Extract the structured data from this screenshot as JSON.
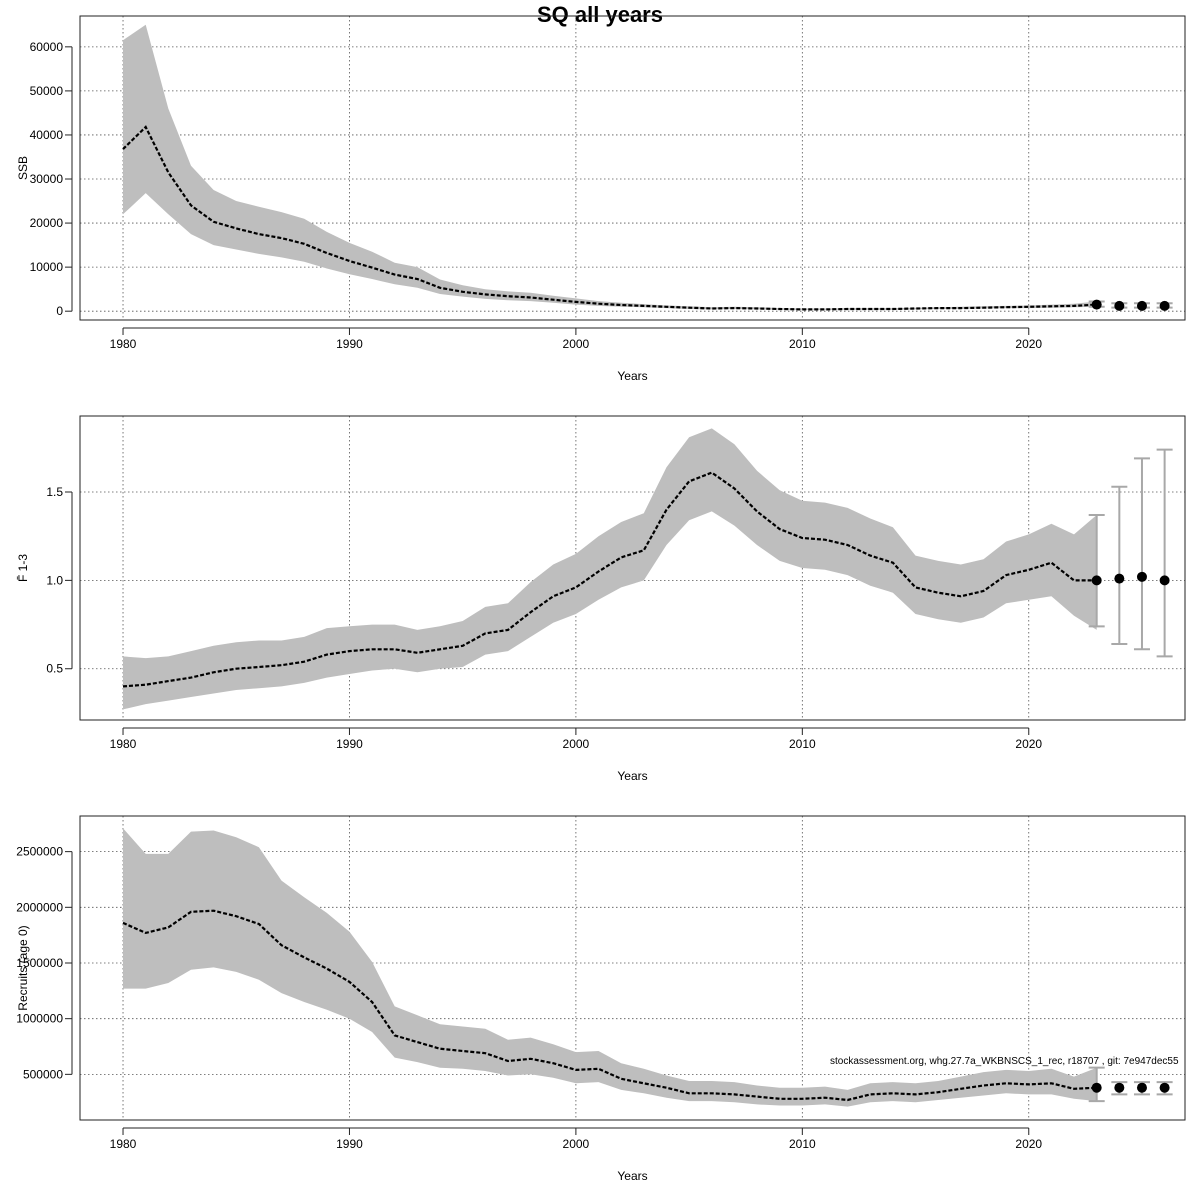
{
  "title": "SQ all years",
  "footnote": "stockassessment.org, whg.27.7a_WKBNSCS_1_rec, r18707 , git: 7e947dec55",
  "chart_data": [
    {
      "type": "line",
      "title": "",
      "ylabel": "SSB",
      "xlabel": "Years",
      "xlim": [
        1978.1,
        2026.9
      ],
      "ylim": [
        -2000,
        67000
      ],
      "xticks": [
        1980,
        1990,
        2000,
        2010,
        2020
      ],
      "yticks": [
        0,
        10000,
        20000,
        30000,
        40000,
        50000,
        60000
      ],
      "grid": true,
      "x": [
        1980,
        1981,
        1982,
        1983,
        1984,
        1985,
        1986,
        1987,
        1988,
        1989,
        1990,
        1991,
        1992,
        1993,
        1994,
        1995,
        1996,
        1997,
        1998,
        1999,
        2000,
        2001,
        2002,
        2003,
        2004,
        2005,
        2006,
        2007,
        2008,
        2009,
        2010,
        2011,
        2012,
        2013,
        2014,
        2015,
        2016,
        2017,
        2018,
        2019,
        2020,
        2021,
        2022,
        2023
      ],
      "estimate": [
        36800,
        41800,
        31500,
        24000,
        20300,
        18800,
        17500,
        16600,
        15300,
        13200,
        11400,
        9900,
        8300,
        7300,
        5300,
        4400,
        3800,
        3400,
        3100,
        2600,
        2100,
        1700,
        1400,
        1200,
        1000,
        800,
        600,
        700,
        600,
        500,
        400,
        400,
        500,
        500,
        500,
        600,
        700,
        700,
        800,
        900,
        1000,
        1100,
        1200,
        1500
      ],
      "lower": [
        22000,
        26800,
        22000,
        17500,
        15000,
        14000,
        13000,
        12200,
        11200,
        9700,
        8400,
        7300,
        6100,
        5300,
        3900,
        3300,
        2800,
        2500,
        2300,
        1900,
        1500,
        1200,
        1000,
        900,
        700,
        500,
        400,
        500,
        400,
        300,
        300,
        300,
        300,
        300,
        300,
        400,
        500,
        500,
        600,
        700,
        700,
        800,
        900,
        1000
      ],
      "upper": [
        61500,
        65000,
        46000,
        33000,
        27500,
        25000,
        23700,
        22500,
        21000,
        18000,
        15500,
        13500,
        11000,
        10000,
        7200,
        5900,
        5000,
        4500,
        4200,
        3500,
        2900,
        2300,
        1900,
        1600,
        1300,
        1100,
        900,
        1000,
        900,
        700,
        600,
        600,
        700,
        700,
        700,
        800,
        900,
        1000,
        1100,
        1200,
        1300,
        1500,
        1700,
        2200
      ],
      "forecast": {
        "x": [
          2023,
          2024,
          2025,
          2026
        ],
        "values": [
          1500,
          1200,
          1200,
          1200
        ],
        "lower": [
          1000,
          800,
          800,
          800
        ],
        "upper": [
          2200,
          1800,
          1800,
          1800
        ]
      }
    },
    {
      "type": "line",
      "title": "",
      "ylabel": "F̄ 1-3",
      "xlabel": "Years",
      "xlim": [
        1978.1,
        2026.9
      ],
      "ylim": [
        0.21,
        1.93
      ],
      "xticks": [
        1980,
        1990,
        2000,
        2010,
        2020
      ],
      "yticks": [
        0.5,
        1.0,
        1.5
      ],
      "ytick_labels": [
        "0.5",
        "1.0",
        "1.5"
      ],
      "grid": true,
      "x": [
        1980,
        1981,
        1982,
        1983,
        1984,
        1985,
        1986,
        1987,
        1988,
        1989,
        1990,
        1991,
        1992,
        1993,
        1994,
        1995,
        1996,
        1997,
        1998,
        1999,
        2000,
        2001,
        2002,
        2003,
        2004,
        2005,
        2006,
        2007,
        2008,
        2009,
        2010,
        2011,
        2012,
        2013,
        2014,
        2015,
        2016,
        2017,
        2018,
        2019,
        2020,
        2021,
        2022,
        2023
      ],
      "estimate": [
        0.4,
        0.41,
        0.43,
        0.45,
        0.48,
        0.5,
        0.51,
        0.52,
        0.54,
        0.58,
        0.6,
        0.61,
        0.61,
        0.59,
        0.61,
        0.63,
        0.7,
        0.72,
        0.82,
        0.91,
        0.96,
        1.05,
        1.13,
        1.17,
        1.4,
        1.56,
        1.61,
        1.52,
        1.39,
        1.29,
        1.24,
        1.23,
        1.2,
        1.14,
        1.1,
        0.96,
        0.93,
        0.91,
        0.94,
        1.03,
        1.06,
        1.1,
        1.0,
        1.0
      ],
      "lower": [
        0.27,
        0.3,
        0.32,
        0.34,
        0.36,
        0.38,
        0.39,
        0.4,
        0.42,
        0.45,
        0.47,
        0.49,
        0.5,
        0.48,
        0.5,
        0.51,
        0.58,
        0.6,
        0.68,
        0.76,
        0.81,
        0.89,
        0.96,
        1.0,
        1.2,
        1.34,
        1.39,
        1.31,
        1.2,
        1.11,
        1.07,
        1.06,
        1.03,
        0.97,
        0.93,
        0.81,
        0.78,
        0.76,
        0.79,
        0.87,
        0.89,
        0.91,
        0.8,
        0.72
      ],
      "upper": [
        0.57,
        0.56,
        0.57,
        0.6,
        0.63,
        0.65,
        0.66,
        0.66,
        0.68,
        0.73,
        0.74,
        0.75,
        0.75,
        0.72,
        0.74,
        0.77,
        0.85,
        0.87,
        0.99,
        1.09,
        1.15,
        1.25,
        1.33,
        1.38,
        1.64,
        1.81,
        1.86,
        1.77,
        1.62,
        1.51,
        1.45,
        1.44,
        1.41,
        1.35,
        1.3,
        1.14,
        1.11,
        1.09,
        1.12,
        1.22,
        1.26,
        1.32,
        1.26,
        1.37
      ],
      "forecast": {
        "x": [
          2023,
          2024,
          2025,
          2026
        ],
        "values": [
          1.0,
          1.01,
          1.02,
          1.0
        ],
        "lower": [
          0.74,
          0.64,
          0.61,
          0.57
        ],
        "upper": [
          1.37,
          1.53,
          1.69,
          1.74
        ]
      }
    },
    {
      "type": "line",
      "title": "",
      "ylabel": "Recruits (age 0)",
      "xlabel": "Years",
      "xlim": [
        1978.1,
        2026.9
      ],
      "ylim": [
        90000,
        2820000
      ],
      "xticks": [
        1980,
        1990,
        2000,
        2010,
        2020
      ],
      "yticks": [
        500000,
        1000000,
        1500000,
        2000000,
        2500000
      ],
      "grid": true,
      "x": [
        1980,
        1981,
        1982,
        1983,
        1984,
        1985,
        1986,
        1987,
        1988,
        1989,
        1990,
        1991,
        1992,
        1993,
        1994,
        1995,
        1996,
        1997,
        1998,
        1999,
        2000,
        2001,
        2002,
        2003,
        2004,
        2005,
        2006,
        2007,
        2008,
        2009,
        2010,
        2011,
        2012,
        2013,
        2014,
        2015,
        2016,
        2017,
        2018,
        2019,
        2020,
        2021,
        2022,
        2023
      ],
      "estimate": [
        1860000,
        1770000,
        1820000,
        1960000,
        1970000,
        1920000,
        1850000,
        1660000,
        1550000,
        1450000,
        1330000,
        1150000,
        850000,
        790000,
        730000,
        710000,
        690000,
        620000,
        640000,
        600000,
        540000,
        550000,
        460000,
        420000,
        380000,
        330000,
        330000,
        320000,
        300000,
        280000,
        280000,
        290000,
        270000,
        320000,
        330000,
        320000,
        340000,
        370000,
        400000,
        420000,
        410000,
        420000,
        370000,
        380000
      ],
      "lower": [
        1270000,
        1270000,
        1320000,
        1440000,
        1460000,
        1420000,
        1350000,
        1230000,
        1150000,
        1080000,
        1000000,
        880000,
        650000,
        610000,
        560000,
        550000,
        530000,
        490000,
        500000,
        470000,
        420000,
        430000,
        360000,
        330000,
        290000,
        260000,
        260000,
        250000,
        230000,
        220000,
        220000,
        230000,
        210000,
        250000,
        260000,
        250000,
        270000,
        290000,
        310000,
        330000,
        320000,
        320000,
        280000,
        260000
      ],
      "upper": [
        2710000,
        2480000,
        2480000,
        2680000,
        2690000,
        2630000,
        2540000,
        2240000,
        2090000,
        1950000,
        1780000,
        1510000,
        1110000,
        1030000,
        950000,
        930000,
        910000,
        810000,
        830000,
        770000,
        700000,
        710000,
        600000,
        550000,
        490000,
        440000,
        440000,
        430000,
        400000,
        380000,
        380000,
        390000,
        360000,
        420000,
        430000,
        420000,
        440000,
        480000,
        520000,
        540000,
        530000,
        550000,
        480000,
        560000
      ],
      "forecast": {
        "x": [
          2023,
          2024,
          2025,
          2026
        ],
        "values": [
          380000,
          380000,
          380000,
          380000
        ],
        "lower": [
          260000,
          320000,
          320000,
          320000
        ],
        "upper": [
          560000,
          430000,
          430000,
          430000
        ]
      }
    }
  ]
}
